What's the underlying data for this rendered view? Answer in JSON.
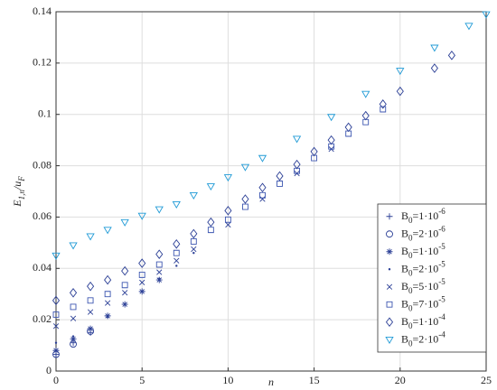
{
  "chart_data": {
    "type": "scatter",
    "xlabel": "n",
    "ylabel": "E1,n/uF",
    "xlim": [
      0,
      25
    ],
    "ylim": [
      0,
      0.14
    ],
    "xticks": [
      0,
      5,
      10,
      15,
      20,
      25
    ],
    "yticks": [
      0,
      0.02,
      0.04,
      0.06,
      0.08,
      0.1,
      0.12,
      0.14
    ],
    "grid": true,
    "legend": "right",
    "series": [
      {
        "name": "B0=1·10-6",
        "marker": "+",
        "color": "#2b3f96",
        "x": [
          0,
          1,
          2
        ],
        "values": [
          0.0065,
          0.011,
          0.015
        ]
      },
      {
        "name": "B0=2·10-6",
        "marker": "o",
        "color": "#2b3f96",
        "x": [
          0,
          1,
          2
        ],
        "values": [
          0.0065,
          0.0105,
          0.0155
        ]
      },
      {
        "name": "B0=1·10-5",
        "marker": "*",
        "color": "#2b3f96",
        "x": [
          0,
          1,
          2,
          3,
          4,
          5,
          6
        ],
        "values": [
          0.008,
          0.0125,
          0.0165,
          0.0215,
          0.026,
          0.031,
          0.0355
        ]
      },
      {
        "name": "B0=2·10-5",
        "marker": ".",
        "color": "#2b3f96",
        "x": [
          0,
          1,
          2,
          3,
          4,
          5,
          6,
          7,
          8
        ],
        "values": [
          0.011,
          0.0135,
          0.0165,
          0.021,
          0.026,
          0.031,
          0.036,
          0.041,
          0.046
        ]
      },
      {
        "name": "B0=5·10-5",
        "marker": "x",
        "color": "#2b3f96",
        "x": [
          0,
          1,
          2,
          3,
          4,
          5,
          6,
          7,
          8,
          10,
          12,
          14,
          16
        ],
        "values": [
          0.0175,
          0.0205,
          0.023,
          0.0265,
          0.0305,
          0.0345,
          0.0385,
          0.043,
          0.0475,
          0.057,
          0.067,
          0.077,
          0.0865
        ]
      },
      {
        "name": "B0=7·10-5",
        "marker": "s",
        "color": "#3c56b0",
        "x": [
          0,
          1,
          2,
          3,
          4,
          5,
          6,
          7,
          8,
          9,
          10,
          11,
          12,
          13,
          14,
          15,
          16,
          17,
          18,
          19
        ],
        "values": [
          0.022,
          0.025,
          0.0275,
          0.03,
          0.0335,
          0.0375,
          0.0415,
          0.046,
          0.0505,
          0.055,
          0.059,
          0.064,
          0.0685,
          0.073,
          0.078,
          0.083,
          0.0875,
          0.0925,
          0.097,
          0.102
        ]
      },
      {
        "name": "B0=1·10-4",
        "marker": "d",
        "color": "#2b3f96",
        "x": [
          0,
          1,
          2,
          3,
          4,
          5,
          6,
          7,
          8,
          9,
          10,
          11,
          12,
          13,
          14,
          15,
          16,
          17,
          18,
          19,
          20,
          22,
          23
        ],
        "values": [
          0.0275,
          0.0305,
          0.033,
          0.0355,
          0.039,
          0.042,
          0.0455,
          0.0495,
          0.0535,
          0.058,
          0.0625,
          0.067,
          0.0715,
          0.076,
          0.0805,
          0.0855,
          0.09,
          0.095,
          0.0995,
          0.104,
          0.109,
          0.118,
          0.123
        ]
      },
      {
        "name": "B0=2·10-4",
        "marker": "v",
        "color": "#1f9ad6",
        "x": [
          0,
          1,
          2,
          3,
          4,
          5,
          6,
          7,
          8,
          9,
          10,
          11,
          12,
          14,
          16,
          18,
          20,
          22,
          24,
          25
        ],
        "values": [
          0.045,
          0.049,
          0.0525,
          0.055,
          0.058,
          0.0605,
          0.063,
          0.065,
          0.0685,
          0.072,
          0.0755,
          0.0795,
          0.083,
          0.0905,
          0.099,
          0.108,
          0.117,
          0.126,
          0.1345,
          0.139
        ]
      }
    ]
  }
}
